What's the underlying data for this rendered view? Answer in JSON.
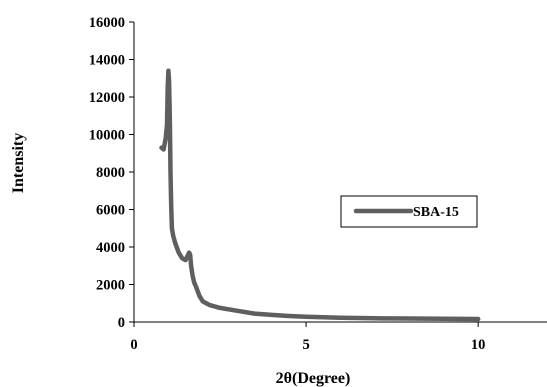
{
  "chart_data": {
    "type": "line",
    "title": "",
    "xlabel": "2θ(Degree)",
    "ylabel": "Intensity",
    "xlim": [
      0,
      12
    ],
    "ylim": [
      0,
      16000
    ],
    "x_ticks": [
      0,
      5,
      10
    ],
    "y_ticks": [
      0,
      2000,
      4000,
      6000,
      8000,
      10000,
      12000,
      14000,
      16000
    ],
    "grid": false,
    "legend_position": "center-right",
    "series": [
      {
        "name": "SBA-15",
        "color": "#5f5f5f",
        "x": [
          0.8,
          0.86,
          0.92,
          0.96,
          0.98,
          1.0,
          1.02,
          1.04,
          1.06,
          1.08,
          1.1,
          1.14,
          1.2,
          1.3,
          1.4,
          1.5,
          1.55,
          1.6,
          1.63,
          1.66,
          1.7,
          1.75,
          1.8,
          1.9,
          2.0,
          2.2,
          2.5,
          3.0,
          3.5,
          4.0,
          4.5,
          5.0,
          6.0,
          7.0,
          8.0,
          9.0,
          10.0
        ],
        "y": [
          9300,
          9200,
          9800,
          10500,
          12500,
          13400,
          12800,
          11000,
          8000,
          6200,
          5000,
          4600,
          4200,
          3700,
          3400,
          3300,
          3500,
          3700,
          3600,
          3000,
          2500,
          2100,
          1900,
          1400,
          1100,
          900,
          750,
          600,
          450,
          380,
          320,
          280,
          230,
          200,
          185,
          170,
          160
        ]
      }
    ]
  }
}
